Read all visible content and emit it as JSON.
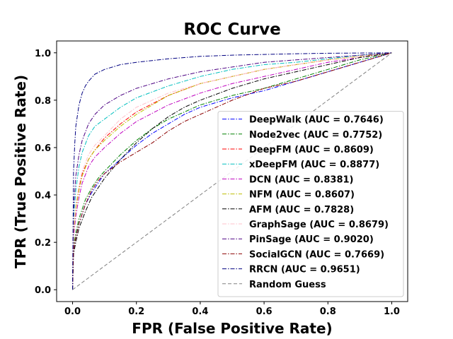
{
  "chart_data": {
    "type": "line",
    "title": "ROC Curve",
    "xlabel": "FPR (False Positive Rate)",
    "ylabel": "TPR (True Positive Rate)",
    "xlim": [
      -0.05,
      1.05
    ],
    "ylim": [
      -0.05,
      1.05
    ],
    "xticks": [
      "0.0",
      "0.2",
      "0.4",
      "0.6",
      "0.8",
      "1.0"
    ],
    "yticks": [
      "0.0",
      "0.2",
      "0.4",
      "0.6",
      "0.8",
      "1.0"
    ],
    "grid": false,
    "legend_position": "lower-right",
    "series": [
      {
        "name": "DeepWalk (AUC = 0.7646)",
        "color": "#0000ff",
        "dash": "dashdot",
        "x": [
          0,
          0.003,
          0.01,
          0.02,
          0.04,
          0.06,
          0.08,
          0.1,
          0.15,
          0.2,
          0.25,
          0.3,
          0.35,
          0.4,
          0.5,
          0.6,
          0.7,
          0.8,
          0.9,
          1.0
        ],
        "y": [
          0,
          0.17,
          0.22,
          0.28,
          0.36,
          0.41,
          0.45,
          0.49,
          0.55,
          0.61,
          0.66,
          0.7,
          0.74,
          0.77,
          0.81,
          0.84,
          0.88,
          0.92,
          0.96,
          1.0
        ]
      },
      {
        "name": "Node2vec (AUC = 0.7752)",
        "color": "#008000",
        "dash": "dashdot",
        "x": [
          0,
          0.003,
          0.01,
          0.02,
          0.04,
          0.06,
          0.08,
          0.1,
          0.15,
          0.2,
          0.25,
          0.3,
          0.35,
          0.4,
          0.5,
          0.6,
          0.7,
          0.8,
          0.9,
          1.0
        ],
        "y": [
          0,
          0.18,
          0.24,
          0.3,
          0.38,
          0.43,
          0.47,
          0.5,
          0.57,
          0.63,
          0.68,
          0.72,
          0.75,
          0.78,
          0.82,
          0.85,
          0.89,
          0.93,
          0.97,
          1.0
        ]
      },
      {
        "name": "DeepFM (AUC = 0.8609)",
        "color": "#ff0000",
        "dash": "dashdot",
        "x": [
          0,
          0.003,
          0.01,
          0.02,
          0.03,
          0.05,
          0.07,
          0.1,
          0.15,
          0.2,
          0.3,
          0.4,
          0.5,
          0.6,
          0.7,
          0.8,
          0.9,
          1.0
        ],
        "y": [
          0,
          0.25,
          0.35,
          0.43,
          0.49,
          0.55,
          0.59,
          0.64,
          0.7,
          0.75,
          0.82,
          0.87,
          0.9,
          0.93,
          0.95,
          0.97,
          0.985,
          1.0
        ]
      },
      {
        "name": "xDeepFM (AUC = 0.8877)",
        "color": "#00bfbf",
        "dash": "dashdot",
        "x": [
          0,
          0.003,
          0.01,
          0.02,
          0.03,
          0.05,
          0.07,
          0.1,
          0.15,
          0.2,
          0.3,
          0.4,
          0.5,
          0.6,
          0.7,
          0.8,
          0.9,
          1.0
        ],
        "y": [
          0,
          0.3,
          0.42,
          0.52,
          0.58,
          0.65,
          0.69,
          0.72,
          0.77,
          0.81,
          0.86,
          0.9,
          0.93,
          0.95,
          0.96,
          0.975,
          0.99,
          1.0
        ]
      },
      {
        "name": "DCN (AUC = 0.8381)",
        "color": "#bf00bf",
        "dash": "dashdot",
        "x": [
          0,
          0.003,
          0.01,
          0.02,
          0.03,
          0.05,
          0.07,
          0.1,
          0.15,
          0.2,
          0.3,
          0.4,
          0.5,
          0.6,
          0.7,
          0.8,
          0.9,
          1.0
        ],
        "y": [
          0,
          0.22,
          0.31,
          0.39,
          0.45,
          0.52,
          0.56,
          0.6,
          0.66,
          0.71,
          0.78,
          0.83,
          0.87,
          0.9,
          0.93,
          0.96,
          0.98,
          1.0
        ]
      },
      {
        "name": "NFM (AUC = 0.8607)",
        "color": "#bfbf00",
        "dash": "dashdot",
        "x": [
          0,
          0.003,
          0.01,
          0.02,
          0.03,
          0.05,
          0.07,
          0.1,
          0.15,
          0.2,
          0.3,
          0.4,
          0.5,
          0.6,
          0.7,
          0.8,
          0.9,
          1.0
        ],
        "y": [
          0,
          0.24,
          0.34,
          0.42,
          0.48,
          0.55,
          0.59,
          0.63,
          0.69,
          0.74,
          0.82,
          0.87,
          0.9,
          0.93,
          0.95,
          0.97,
          0.985,
          1.0
        ]
      },
      {
        "name": "AFM (AUC = 0.7828)",
        "color": "#000000",
        "dash": "dashdot",
        "x": [
          0,
          0.003,
          0.01,
          0.02,
          0.04,
          0.06,
          0.08,
          0.1,
          0.15,
          0.2,
          0.25,
          0.3,
          0.35,
          0.4,
          0.5,
          0.6,
          0.7,
          0.8,
          0.9,
          1.0
        ],
        "y": [
          0,
          0.15,
          0.2,
          0.26,
          0.33,
          0.39,
          0.43,
          0.47,
          0.55,
          0.62,
          0.68,
          0.73,
          0.77,
          0.8,
          0.85,
          0.89,
          0.92,
          0.95,
          0.98,
          1.0
        ]
      },
      {
        "name": "GraphSage (AUC = 0.8679)",
        "color": "#ffc0cb",
        "dash": "dashdot",
        "x": [
          0,
          0.003,
          0.01,
          0.02,
          0.03,
          0.05,
          0.07,
          0.1,
          0.15,
          0.2,
          0.3,
          0.4,
          0.5,
          0.6,
          0.7,
          0.8,
          0.9,
          1.0
        ],
        "y": [
          0,
          0.26,
          0.36,
          0.44,
          0.5,
          0.57,
          0.61,
          0.65,
          0.72,
          0.77,
          0.83,
          0.87,
          0.9,
          0.93,
          0.95,
          0.97,
          0.985,
          1.0
        ]
      },
      {
        "name": "PinSage (AUC = 0.9020)",
        "color": "#4b0082",
        "dash": "dashdot",
        "x": [
          0,
          0.003,
          0.01,
          0.02,
          0.03,
          0.05,
          0.07,
          0.1,
          0.15,
          0.2,
          0.3,
          0.4,
          0.5,
          0.6,
          0.7,
          0.8,
          0.9,
          1.0
        ],
        "y": [
          0,
          0.34,
          0.48,
          0.57,
          0.63,
          0.7,
          0.74,
          0.78,
          0.82,
          0.85,
          0.89,
          0.92,
          0.94,
          0.96,
          0.97,
          0.98,
          0.99,
          1.0
        ]
      },
      {
        "name": "SocialGCN (AUC = 0.7669)",
        "color": "#8b0000",
        "dash": "dashdot",
        "x": [
          0,
          0.003,
          0.01,
          0.02,
          0.04,
          0.06,
          0.08,
          0.1,
          0.15,
          0.2,
          0.25,
          0.3,
          0.35,
          0.4,
          0.5,
          0.6,
          0.7,
          0.8,
          0.9,
          1.0
        ],
        "y": [
          0,
          0.17,
          0.22,
          0.28,
          0.36,
          0.42,
          0.46,
          0.49,
          0.54,
          0.58,
          0.62,
          0.67,
          0.71,
          0.74,
          0.8,
          0.85,
          0.88,
          0.92,
          0.96,
          1.0
        ]
      },
      {
        "name": "RRCN (AUC = 0.9651)",
        "color": "#000080",
        "dash": "dashdot",
        "x": [
          0,
          0.003,
          0.007,
          0.01,
          0.02,
          0.03,
          0.04,
          0.05,
          0.07,
          0.1,
          0.15,
          0.2,
          0.3,
          0.4,
          0.5,
          0.6,
          0.7,
          0.8,
          0.9,
          1.0
        ],
        "y": [
          0,
          0.5,
          0.62,
          0.69,
          0.78,
          0.83,
          0.86,
          0.88,
          0.91,
          0.93,
          0.95,
          0.96,
          0.975,
          0.985,
          0.99,
          0.993,
          0.996,
          0.998,
          0.999,
          1.0
        ]
      },
      {
        "name": "Random Guess",
        "color": "#808080",
        "dash": "dashed",
        "x": [
          0,
          1
        ],
        "y": [
          0,
          1
        ]
      }
    ]
  }
}
